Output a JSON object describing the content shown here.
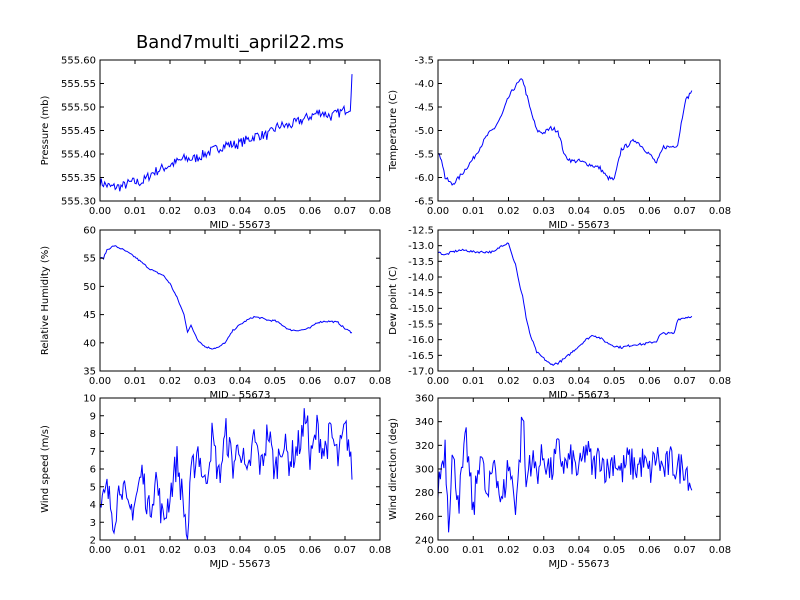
{
  "figure": {
    "title": "Band7multi_april22.ms",
    "line_color": "#0000ff"
  },
  "chart_data": [
    {
      "type": "line",
      "title": "",
      "xlabel": "MID - 55673",
      "ylabel": "Pressure (mb)",
      "xlim": [
        0.0,
        0.08
      ],
      "ylim": [
        555.3,
        555.6
      ],
      "xticks": [
        "0.00",
        "0.01",
        "0.02",
        "0.03",
        "0.04",
        "0.05",
        "0.06",
        "0.07",
        "0.08"
      ],
      "yticks": [
        "555.30",
        "555.35",
        "555.40",
        "555.45",
        "555.50",
        "555.55",
        "555.60"
      ],
      "series": [
        {
          "x": [
            0.0,
            0.003,
            0.006,
            0.009,
            0.012,
            0.015,
            0.018,
            0.021,
            0.024,
            0.027,
            0.03,
            0.033,
            0.036,
            0.039,
            0.042,
            0.045,
            0.048,
            0.051,
            0.054,
            0.057,
            0.06,
            0.063,
            0.066,
            0.069,
            0.0715,
            0.072
          ],
          "y": [
            555.34,
            555.33,
            555.33,
            555.34,
            555.34,
            555.36,
            555.37,
            555.38,
            555.39,
            555.39,
            555.4,
            555.41,
            555.42,
            555.42,
            555.43,
            555.44,
            555.44,
            555.46,
            555.46,
            555.47,
            555.48,
            555.49,
            555.48,
            555.49,
            555.5,
            555.57
          ]
        }
      ]
    },
    {
      "type": "line",
      "title": "",
      "xlabel": "MID - 55673",
      "ylabel": "Temperature (C)",
      "xlim": [
        0.0,
        0.08
      ],
      "ylim": [
        -6.5,
        -3.5
      ],
      "xticks": [
        "0.00",
        "0.01",
        "0.02",
        "0.03",
        "0.04",
        "0.05",
        "0.06",
        "0.07",
        "0.08"
      ],
      "yticks": [
        "-6.5",
        "-6.0",
        "-5.5",
        "-5.0",
        "-4.5",
        "-4.0",
        "-3.5"
      ],
      "series": [
        {
          "x": [
            0.0,
            0.001,
            0.002,
            0.004,
            0.006,
            0.008,
            0.01,
            0.012,
            0.014,
            0.016,
            0.018,
            0.02,
            0.022,
            0.024,
            0.026,
            0.028,
            0.03,
            0.032,
            0.034,
            0.036,
            0.038,
            0.04,
            0.042,
            0.044,
            0.046,
            0.048,
            0.05,
            0.052,
            0.054,
            0.056,
            0.058,
            0.06,
            0.062,
            0.064,
            0.066,
            0.068,
            0.07,
            0.072
          ],
          "y": [
            -5.5,
            -5.6,
            -6.0,
            -6.15,
            -6.0,
            -5.8,
            -5.6,
            -5.35,
            -5.1,
            -4.95,
            -4.7,
            -4.3,
            -4.05,
            -3.9,
            -4.5,
            -5.0,
            -5.05,
            -4.95,
            -5.0,
            -5.55,
            -5.65,
            -5.65,
            -5.7,
            -5.75,
            -5.8,
            -6.0,
            -6.05,
            -5.4,
            -5.3,
            -5.2,
            -5.35,
            -5.5,
            -5.7,
            -5.35,
            -5.35,
            -5.3,
            -4.4,
            -4.15
          ]
        }
      ]
    },
    {
      "type": "line",
      "title": "",
      "xlabel": "MID - 55673",
      "ylabel": "Relative Humidity (%)",
      "xlim": [
        0.0,
        0.08
      ],
      "ylim": [
        35,
        60
      ],
      "xticks": [
        "0.00",
        "0.01",
        "0.02",
        "0.03",
        "0.04",
        "0.05",
        "0.06",
        "0.07",
        "0.08"
      ],
      "yticks": [
        "35",
        "40",
        "45",
        "50",
        "55",
        "60"
      ],
      "series": [
        {
          "x": [
            0.0,
            0.001,
            0.002,
            0.004,
            0.006,
            0.008,
            0.01,
            0.012,
            0.014,
            0.016,
            0.018,
            0.02,
            0.022,
            0.024,
            0.025,
            0.026,
            0.028,
            0.03,
            0.032,
            0.034,
            0.036,
            0.038,
            0.04,
            0.042,
            0.044,
            0.046,
            0.048,
            0.05,
            0.052,
            0.054,
            0.056,
            0.058,
            0.06,
            0.062,
            0.064,
            0.066,
            0.068,
            0.07,
            0.072
          ],
          "y": [
            55,
            55,
            56.5,
            57.2,
            56.7,
            56,
            55.2,
            54.2,
            53.2,
            52.5,
            52,
            50.5,
            48,
            45,
            42,
            43,
            40.5,
            39.3,
            39,
            39.2,
            40.2,
            42.2,
            43.2,
            44,
            44.6,
            44.4,
            44,
            43.9,
            43.2,
            42.3,
            42.2,
            42.3,
            42.6,
            43.6,
            43.8,
            43.8,
            43.6,
            42.5,
            41.8
          ]
        }
      ]
    },
    {
      "type": "line",
      "title": "",
      "xlabel": "MID - 55673",
      "ylabel": "Dew point (C)",
      "xlim": [
        0.0,
        0.08
      ],
      "ylim": [
        -17.0,
        -12.5
      ],
      "xticks": [
        "0.00",
        "0.01",
        "0.02",
        "0.03",
        "0.04",
        "0.05",
        "0.06",
        "0.07",
        "0.08"
      ],
      "yticks": [
        "-17.0",
        "-16.5",
        "-16.0",
        "-15.5",
        "-15.0",
        "-14.5",
        "-14.0",
        "-13.5",
        "-13.0",
        "-12.5"
      ],
      "series": [
        {
          "x": [
            0.0,
            0.002,
            0.004,
            0.006,
            0.008,
            0.01,
            0.012,
            0.014,
            0.016,
            0.018,
            0.02,
            0.021,
            0.022,
            0.023,
            0.024,
            0.025,
            0.026,
            0.027,
            0.028,
            0.03,
            0.032,
            0.034,
            0.036,
            0.038,
            0.04,
            0.042,
            0.044,
            0.046,
            0.048,
            0.05,
            0.052,
            0.054,
            0.056,
            0.058,
            0.06,
            0.062,
            0.063,
            0.064,
            0.066,
            0.067,
            0.068,
            0.07,
            0.072
          ],
          "y": [
            -13.2,
            -13.3,
            -13.2,
            -13.15,
            -13.15,
            -13.2,
            -13.2,
            -13.2,
            -13.2,
            -13.0,
            -12.9,
            -13.3,
            -13.6,
            -14.2,
            -14.6,
            -15.3,
            -15.8,
            -16.1,
            -16.4,
            -16.6,
            -16.8,
            -16.75,
            -16.6,
            -16.4,
            -16.2,
            -16.0,
            -15.85,
            -15.95,
            -16.1,
            -16.2,
            -16.25,
            -16.2,
            -16.15,
            -16.15,
            -16.1,
            -16.05,
            -15.85,
            -15.8,
            -15.8,
            -15.8,
            -15.35,
            -15.3,
            -15.25
          ]
        }
      ]
    },
    {
      "type": "line",
      "title": "",
      "xlabel": "MJD - 55673",
      "ylabel": "Wind speed (m/s)",
      "xlim": [
        0.0,
        0.08
      ],
      "ylim": [
        2,
        10
      ],
      "xticks": [
        "0.00",
        "0.01",
        "0.02",
        "0.03",
        "0.04",
        "0.05",
        "0.06",
        "0.07",
        "0.08"
      ],
      "yticks": [
        "2",
        "3",
        "4",
        "5",
        "6",
        "7",
        "8",
        "9",
        "10"
      ],
      "series": [
        {
          "x": [
            0.0,
            0.002,
            0.004,
            0.006,
            0.008,
            0.01,
            0.012,
            0.014,
            0.016,
            0.018,
            0.02,
            0.022,
            0.024,
            0.025,
            0.026,
            0.028,
            0.03,
            0.032,
            0.034,
            0.036,
            0.038,
            0.04,
            0.042,
            0.044,
            0.046,
            0.048,
            0.05,
            0.052,
            0.054,
            0.056,
            0.058,
            0.059,
            0.06,
            0.062,
            0.064,
            0.066,
            0.068,
            0.07,
            0.071,
            0.072
          ],
          "y": [
            3.5,
            4.8,
            3.2,
            5.5,
            3.4,
            4.2,
            5.8,
            3.6,
            5.5,
            3.0,
            4.6,
            6.5,
            3.8,
            2.0,
            5.5,
            7.2,
            5.0,
            7.8,
            5.5,
            8.0,
            6.2,
            7.5,
            5.2,
            7.8,
            6.0,
            8.2,
            5.8,
            7.6,
            6.5,
            7.0,
            8.0,
            9.5,
            6.2,
            8.3,
            7.0,
            8.0,
            6.5,
            8.2,
            7.6,
            5.4
          ]
        }
      ]
    },
    {
      "type": "line",
      "title": "",
      "xlabel": "MJD - 55673",
      "ylabel": "Wind direction (deg)",
      "xlim": [
        0.0,
        0.08
      ],
      "ylim": [
        240,
        360
      ],
      "xticks": [
        "0.00",
        "0.01",
        "0.02",
        "0.03",
        "0.04",
        "0.05",
        "0.06",
        "0.07",
        "0.08"
      ],
      "yticks": [
        "240",
        "260",
        "280",
        "300",
        "320",
        "340",
        "360"
      ],
      "series": [
        {
          "x": [
            0.0,
            0.002,
            0.003,
            0.004,
            0.006,
            0.008,
            0.01,
            0.012,
            0.014,
            0.016,
            0.018,
            0.02,
            0.022,
            0.023,
            0.024,
            0.025,
            0.026,
            0.028,
            0.03,
            0.032,
            0.034,
            0.036,
            0.038,
            0.04,
            0.042,
            0.044,
            0.046,
            0.048,
            0.05,
            0.052,
            0.054,
            0.056,
            0.058,
            0.06,
            0.062,
            0.064,
            0.066,
            0.068,
            0.07,
            0.071,
            0.072
          ],
          "y": [
            285,
            320,
            258,
            310,
            275,
            325,
            262,
            318,
            270,
            312,
            268,
            305,
            272,
            300,
            352,
            282,
            310,
            298,
            312,
            296,
            316,
            302,
            308,
            296,
            318,
            300,
            312,
            298,
            310,
            296,
            308,
            300,
            306,
            296,
            312,
            298,
            306,
            300,
            304,
            296,
            282
          ]
        }
      ]
    }
  ]
}
